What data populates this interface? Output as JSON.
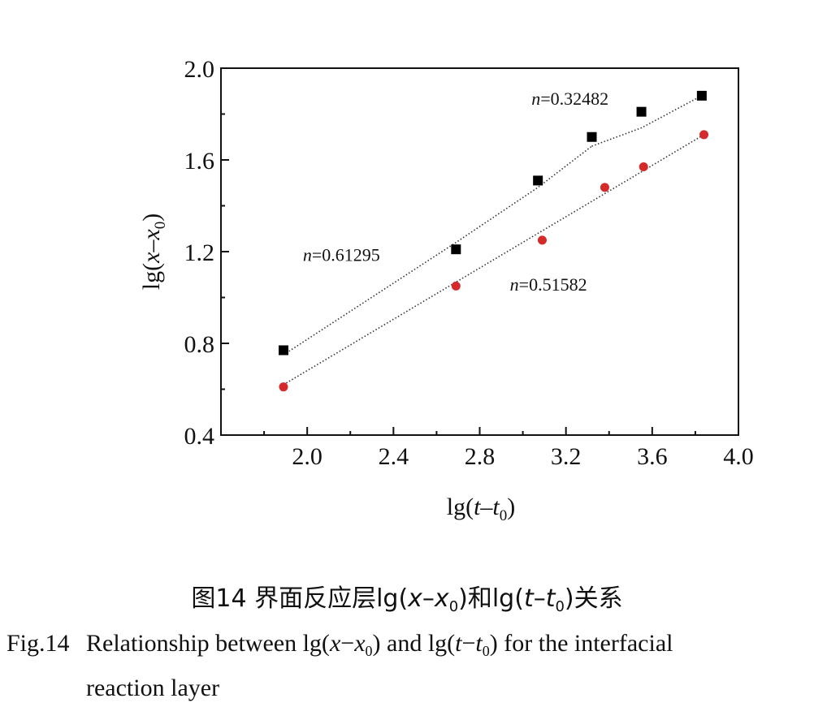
{
  "chart_data": {
    "type": "scatter",
    "x": {
      "min": 1.6,
      "max": 4.0,
      "ticks": [
        "2.0",
        "2.4",
        "2.8",
        "3.2",
        "3.6",
        "4.0"
      ],
      "tick_values": [
        2.0,
        2.4,
        2.8,
        3.2,
        3.6,
        4.0
      ],
      "minor_ticks": [
        1.8,
        2.2,
        2.6,
        3.0,
        3.4,
        3.8
      ]
    },
    "y": {
      "min": 0.4,
      "max": 2.0,
      "ticks": [
        "0.4",
        "0.8",
        "1.2",
        "1.6",
        "2.0"
      ],
      "tick_values": [
        0.4,
        0.8,
        1.2,
        1.6,
        2.0
      ],
      "minor_ticks": [
        0.6,
        1.0,
        1.4,
        1.8
      ]
    },
    "xlabel": {
      "pre": "lg(",
      "var1": "t",
      "dash": "–",
      "var2": "t",
      "sub": "0",
      "post": ")"
    },
    "ylabel": {
      "pre": "lg(",
      "var1": "x",
      "dash": "–",
      "var2": "x",
      "sub": "0",
      "post": ")"
    },
    "series": [
      {
        "marker": "square",
        "color": "#000000",
        "points": [
          [
            1.89,
            0.77
          ],
          [
            2.69,
            1.21
          ],
          [
            3.07,
            1.51
          ],
          [
            3.32,
            1.7
          ],
          [
            3.55,
            1.81
          ],
          [
            3.83,
            1.88
          ]
        ]
      },
      {
        "marker": "circle",
        "color": "#d42a2a",
        "points": [
          [
            1.89,
            0.61
          ],
          [
            2.69,
            1.05
          ],
          [
            3.09,
            1.25
          ],
          [
            3.38,
            1.48
          ],
          [
            3.56,
            1.57
          ],
          [
            3.84,
            1.71
          ]
        ]
      }
    ],
    "fits": [
      {
        "points": [
          [
            1.89,
            0.75
          ],
          [
            2.69,
            1.24
          ],
          [
            3.07,
            1.48
          ],
          [
            3.32,
            1.66
          ]
        ]
      },
      {
        "points": [
          [
            3.32,
            1.66
          ],
          [
            3.55,
            1.74
          ],
          [
            3.83,
            1.88
          ]
        ]
      },
      {
        "points": [
          [
            1.89,
            0.62
          ],
          [
            3.84,
            1.71
          ]
        ]
      }
    ],
    "annotations": [
      {
        "var": "n",
        "text": "=0.32482",
        "x": 3.04,
        "y": 1.84
      },
      {
        "var": "n",
        "text": "=0.61295",
        "x": 1.98,
        "y": 1.16
      },
      {
        "var": "n",
        "text": "=0.51582",
        "x": 2.94,
        "y": 1.03
      }
    ]
  },
  "caption": {
    "cn": {
      "prefix": "图14  界面反应层lg(",
      "v1": "x",
      "dash": "–",
      "v2": "x",
      "sub": "0",
      "mid": ")和lg(",
      "v3": "t",
      "dash2": "–",
      "v4": "t",
      "sub2": "0",
      "suffix": ")关系"
    },
    "en": {
      "fig": "Fig.14",
      "text1": "Relationship between lg(",
      "v1": "x",
      "dash": "−",
      "v2": "x",
      "sub": "0",
      "text2": ") and lg(",
      "v3": "t",
      "dash2": "−",
      "v4": "t",
      "sub2": "0",
      "text3": ") for the interfacial",
      "line2": "reaction layer"
    }
  }
}
